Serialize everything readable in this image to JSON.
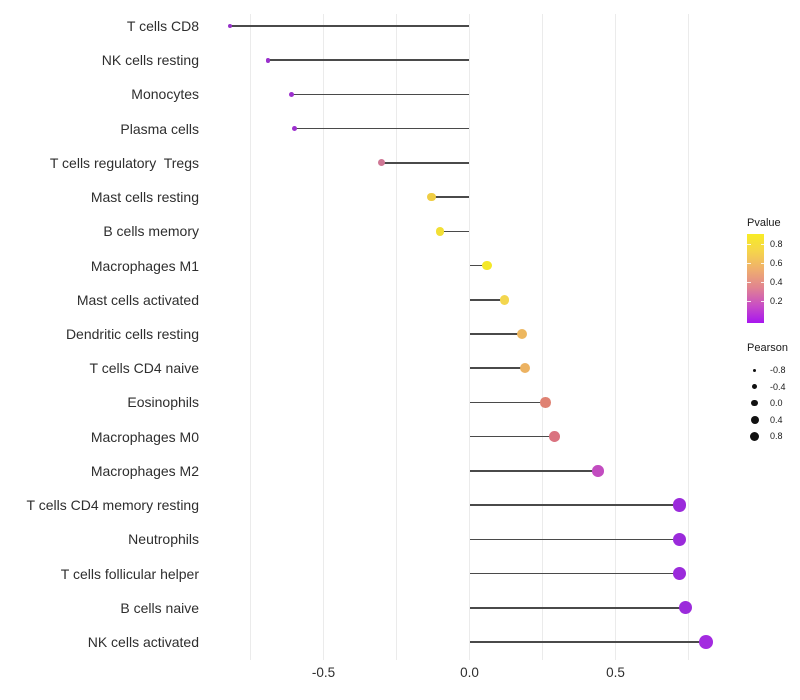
{
  "chart_data": {
    "type": "scatter",
    "variant": "lollipop",
    "title": "",
    "xlabel": "",
    "ylabel": "",
    "x_tick_labels": [
      "-0.5",
      "0.0",
      "0.5"
    ],
    "x_tick_values": [
      -0.5,
      0.0,
      0.5
    ],
    "xlim": [
      -0.9,
      0.9
    ],
    "grid_x_values": [
      -0.75,
      -0.5,
      -0.25,
      0,
      0.25,
      0.5,
      0.75
    ],
    "size_encoding": "Pearson",
    "color_encoding": "Pvalue",
    "rows": [
      {
        "label": "T cells CD8",
        "pearson": -0.82,
        "color": "#9632C8"
      },
      {
        "label": "NK cells resting",
        "pearson": -0.69,
        "color": "#9A30CC"
      },
      {
        "label": "Monocytes",
        "pearson": -0.61,
        "color": "#9D30CE"
      },
      {
        "label": "Plasma cells",
        "pearson": -0.6,
        "color": "#9D30CE"
      },
      {
        "label": "T cells regulatory  Tregs",
        "pearson": -0.3,
        "color": "#CF7795"
      },
      {
        "label": "Mast cells resting",
        "pearson": -0.13,
        "color": "#EFCD44"
      },
      {
        "label": "B cells memory",
        "pearson": -0.1,
        "color": "#F2DF35"
      },
      {
        "label": "Macrophages M1",
        "pearson": 0.06,
        "color": "#F4E829"
      },
      {
        "label": "Mast cells activated",
        "pearson": 0.12,
        "color": "#F3D64E"
      },
      {
        "label": "Dendritic cells resting",
        "pearson": 0.18,
        "color": "#EDB75F"
      },
      {
        "label": "T cells CD4 naive",
        "pearson": 0.19,
        "color": "#ECB261"
      },
      {
        "label": "Eosinophils",
        "pearson": 0.26,
        "color": "#DF8273"
      },
      {
        "label": "Macrophages M0",
        "pearson": 0.29,
        "color": "#DA7380"
      },
      {
        "label": "Macrophages M2",
        "pearson": 0.44,
        "color": "#C24CC0"
      },
      {
        "label": "T cells CD4 memory resting",
        "pearson": 0.72,
        "color": "#9B2BDB"
      },
      {
        "label": "Neutrophils",
        "pearson": 0.72,
        "color": "#9B2BDB"
      },
      {
        "label": "T cells follicular helper",
        "pearson": 0.72,
        "color": "#9B2BDB"
      },
      {
        "label": "B cells naive",
        "pearson": 0.74,
        "color": "#9B2BDB"
      },
      {
        "label": "NK cells activated",
        "pearson": 0.81,
        "color": "#A32BE0"
      }
    ]
  },
  "legend": {
    "pvalue": {
      "title": "Pvalue",
      "tick_labels": [
        "0.8",
        "0.6",
        "0.4",
        "0.2"
      ],
      "gradient_top_to_bottom": [
        "#F8EC25",
        "#F5D44C",
        "#EFAE6E",
        "#E18490",
        "#C94FC4",
        "#A816EF"
      ]
    },
    "pearson": {
      "title": "Pearson",
      "entries": [
        {
          "label": "-0.8",
          "diameter": 3
        },
        {
          "label": "-0.4",
          "diameter": 5
        },
        {
          "label": "0.0",
          "diameter": 6.6
        },
        {
          "label": "0.4",
          "diameter": 8
        },
        {
          "label": "0.8",
          "diameter": 9
        }
      ],
      "dot_color": "#111111"
    }
  },
  "colors": {
    "segment": "#4a4a4a",
    "gridline": "#ebebeb",
    "axis_text": "#2e2e2e",
    "background": "#ffffff"
  }
}
